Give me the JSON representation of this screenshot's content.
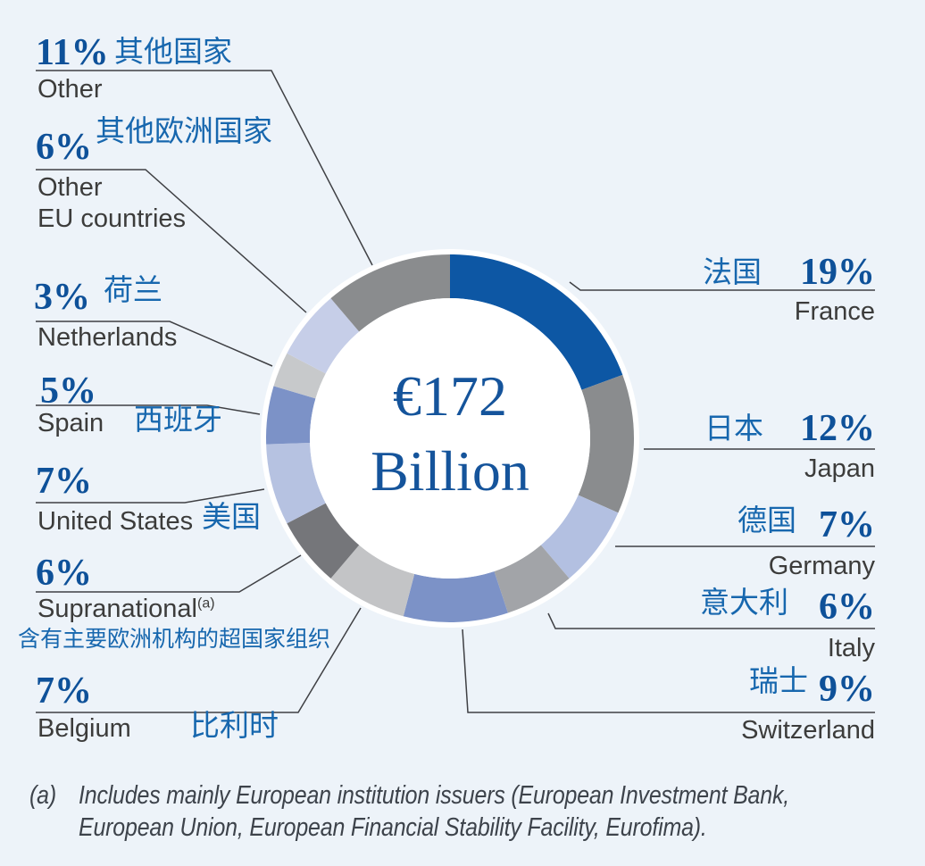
{
  "palette": {
    "background": "#edf3f9",
    "percent_text": "#0e5199",
    "chinese_text": "#1767ae",
    "english_text": "#3c3c3b",
    "center_text": "#15549b",
    "leader_line": "#3f4044",
    "donut_hole": "#ffffff"
  },
  "chart_data": {
    "type": "donut",
    "title": "€172 Billion",
    "center_text": {
      "line1": "€172",
      "line2": "Billion"
    },
    "values_unit": "percent",
    "start_angle_deg": 0,
    "direction": "clockwise",
    "series": [
      {
        "id": "france",
        "name": "France",
        "name_zh": "法国",
        "percent": 19,
        "percent_label": "19%",
        "color": "#0d57a4"
      },
      {
        "id": "japan",
        "name": "Japan",
        "name_zh": "日本",
        "percent": 12,
        "percent_label": "12%",
        "color": "#8a8c8e"
      },
      {
        "id": "germany",
        "name": "Germany",
        "name_zh": "德国",
        "percent": 7,
        "percent_label": "7%",
        "color": "#b3c0e1"
      },
      {
        "id": "italy",
        "name": "Italy",
        "name_zh": "意大利",
        "percent": 6,
        "percent_label": "6%",
        "color": "#a2a4a8"
      },
      {
        "id": "switzerland",
        "name": "Switzerland",
        "name_zh": "瑞士",
        "percent": 9,
        "percent_label": "9%",
        "color": "#7c92c7"
      },
      {
        "id": "belgium",
        "name": "Belgium",
        "name_zh": "比利时",
        "percent": 7,
        "percent_label": "7%",
        "color": "#c3c4c6"
      },
      {
        "id": "supranational",
        "name": "Supranational",
        "footnote_marker": "(a)",
        "name_zh": "含有主要欧洲机构的超国家组织",
        "percent": 6,
        "percent_label": "6%",
        "color": "#75767a"
      },
      {
        "id": "united-states",
        "name": "United States",
        "name_zh": "美国",
        "percent": 7,
        "percent_label": "7%",
        "color": "#b6c2e1"
      },
      {
        "id": "spain",
        "name": "Spain",
        "name_zh": "西班牙",
        "percent": 5,
        "percent_label": "5%",
        "color": "#7c92c7"
      },
      {
        "id": "netherlands",
        "name": "Netherlands",
        "name_zh": "荷兰",
        "percent": 3,
        "percent_label": "3%",
        "color": "#c7c9cb"
      },
      {
        "id": "other-eu",
        "name": "Other EU countries",
        "name_line1": "Other",
        "name_line2": "EU countries",
        "name_zh": "其他欧洲国家",
        "percent": 6,
        "percent_label": "6%",
        "color": "#c6cee8"
      },
      {
        "id": "other",
        "name": "Other",
        "name_zh": "其他国家",
        "percent": 11,
        "percent_label": "11%",
        "color": "#8a8c8e"
      }
    ]
  },
  "footnote": {
    "marker": "(a)",
    "line1": "Includes mainly European institution issuers (European Investment Bank,",
    "line2": "European Union, European Financial Stability Facility, Eurofima)."
  }
}
